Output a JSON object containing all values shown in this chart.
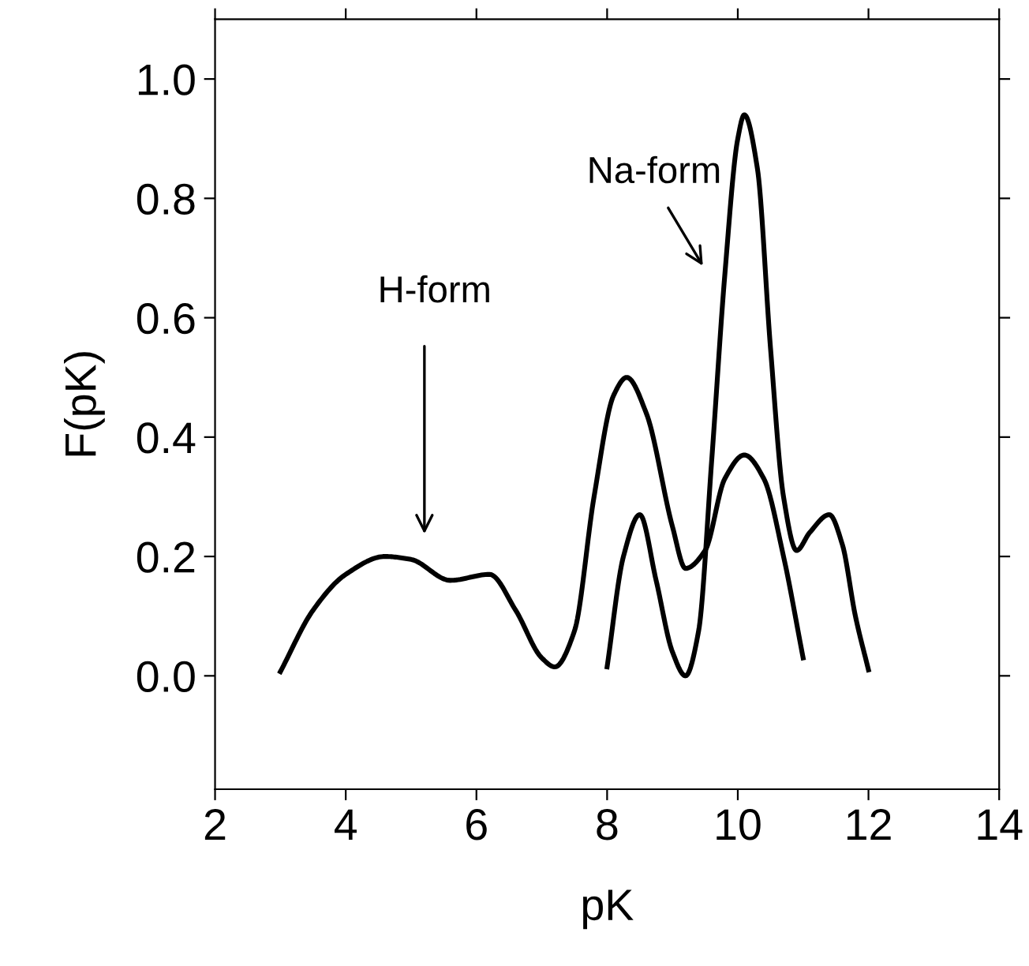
{
  "chart_data": {
    "type": "line",
    "xlabel": "pK",
    "ylabel": "F(pK)",
    "xlim": [
      2,
      14
    ],
    "xticks": [
      2,
      4,
      6,
      8,
      10,
      12,
      14
    ],
    "ylim": [
      -0.19,
      1.1
    ],
    "yticks": [
      {
        "value": 0,
        "label": "0.0"
      },
      0.2,
      0.4,
      0.6,
      0.8,
      {
        "value": 1,
        "label": "1.0"
      }
    ],
    "grid": false,
    "marker": "none",
    "line_style": "solid",
    "series": [
      {
        "color": "#000000",
        "x": [
          3.0,
          3.5,
          4.0,
          4.6,
          5.0,
          5.6,
          6.2,
          6.6,
          7.0,
          7.2,
          7.5,
          7.8,
          8.1,
          8.3,
          8.6,
          9.0,
          9.2,
          9.5,
          9.8,
          10.1,
          10.4,
          10.7,
          11.0
        ],
        "values": [
          0.007,
          0.11,
          0.17,
          0.2,
          0.195,
          0.16,
          0.17,
          0.11,
          0.03,
          0.015,
          0.075,
          0.3,
          0.47,
          0.5,
          0.44,
          0.25,
          0.18,
          0.21,
          0.33,
          0.37,
          0.33,
          0.2,
          0.03
        ]
      },
      {
        "color": "#000000",
        "x": [
          8.0,
          8.25,
          8.5,
          8.75,
          9.0,
          9.2,
          9.4,
          9.6,
          9.8,
          10.0,
          10.1,
          10.3,
          10.5,
          10.7,
          10.9,
          11.1,
          11.4,
          11.6,
          11.8,
          12.0
        ],
        "values": [
          0.015,
          0.2,
          0.27,
          0.16,
          0.04,
          0.0,
          0.075,
          0.36,
          0.67,
          0.9,
          0.94,
          0.85,
          0.55,
          0.3,
          0.21,
          0.24,
          0.27,
          0.22,
          0.1,
          0.01
        ]
      }
    ],
    "annotations": [
      "H-form",
      "Na-form"
    ]
  }
}
